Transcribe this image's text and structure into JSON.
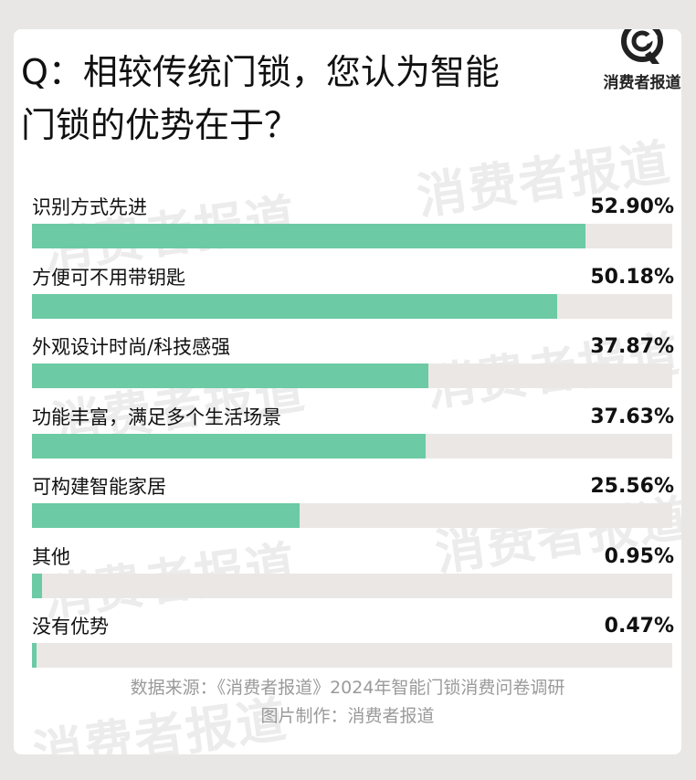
{
  "title_line1": "Q：相较传统门锁，您认为智能",
  "title_line2": "门锁的优势在于？",
  "logo": {
    "text": "消费者报道",
    "icon": "logo-q-icon",
    "color": "#222222"
  },
  "watermark_text": "消费者报道",
  "colors": {
    "bar_fill": "#6ccaa4",
    "bar_track": "#ebe7e5",
    "background": "#e9e7e5"
  },
  "chart_data": {
    "type": "bar",
    "orientation": "horizontal",
    "categories": [
      "识别方式先进",
      "方便可不用带钥匙",
      "外观设计时尚/科技感强",
      "功能丰富，满足多个生活场景",
      "可构建智能家居",
      "其他",
      "没有优势"
    ],
    "values": [
      52.9,
      50.18,
      37.87,
      37.63,
      25.56,
      0.95,
      0.47
    ],
    "value_labels": [
      "52.90%",
      "50.18%",
      "37.87%",
      "37.63%",
      "25.56%",
      "0.95%",
      "0.47%"
    ],
    "xlim": [
      0,
      61.2
    ],
    "grid": false
  },
  "source_line1": "数据来源：《消费者报道》2024年智能门锁消费问卷调研",
  "source_line2": "图片制作：消费者报道"
}
